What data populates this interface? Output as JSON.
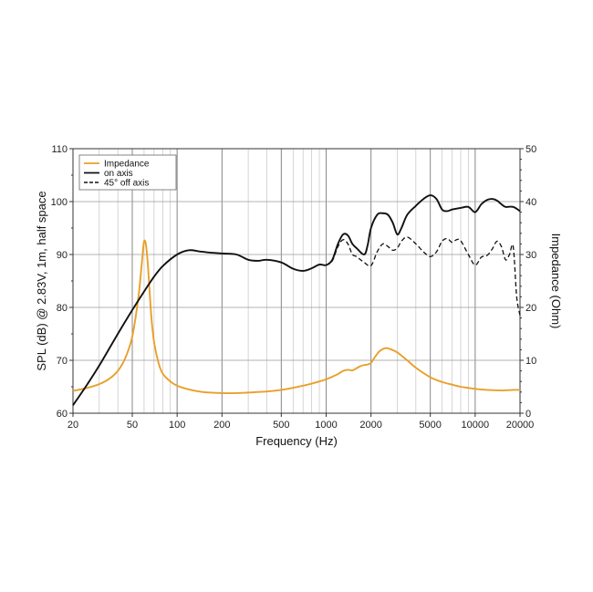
{
  "chart_data": {
    "type": "line",
    "xlabel": "Frequency (Hz)",
    "ylabel_left": "SPL (dB) @ 2.83V, 1m, half space",
    "ylabel_right": "Impedance (Ohm)",
    "x_scale": "log",
    "xlim": [
      20,
      20000
    ],
    "ylim_left": [
      60,
      110
    ],
    "ylim_right": [
      0,
      50
    ],
    "x_ticks": [
      20,
      50,
      100,
      200,
      500,
      1000,
      2000,
      5000,
      10000,
      20000
    ],
    "x_tick_labels": [
      "20",
      "50",
      "100",
      "200",
      "500",
      "1000",
      "2000",
      "5000",
      "10000",
      "20000"
    ],
    "y_ticks_left": [
      60,
      70,
      80,
      90,
      100,
      110
    ],
    "y_ticks_right": [
      0,
      10,
      20,
      30,
      40,
      50
    ],
    "grid": true,
    "legend_position": "top-left",
    "series": [
      {
        "name": "Impedance",
        "axis": "right",
        "color": "#E8A02A",
        "style": "solid",
        "x": [
          20,
          25,
          30,
          35,
          40,
          45,
          50,
          55,
          58,
          60,
          62,
          64,
          67,
          70,
          75,
          80,
          90,
          100,
          120,
          150,
          200,
          250,
          300,
          400,
          500,
          600,
          700,
          800,
          900,
          1000,
          1100,
          1200,
          1300,
          1400,
          1500,
          1600,
          1700,
          1800,
          1900,
          2000,
          2100,
          2200,
          2300,
          2500,
          2700,
          3000,
          3500,
          4000,
          5000,
          6000,
          7000,
          8000,
          10000,
          12000,
          15000,
          18000,
          20000
        ],
        "y": [
          4.2,
          4.8,
          5.5,
          6.5,
          8.0,
          10.5,
          14.5,
          22.0,
          28.5,
          32.5,
          31.5,
          27.0,
          18.5,
          13.5,
          9.5,
          7.5,
          6.0,
          5.2,
          4.5,
          4.0,
          3.8,
          3.8,
          3.9,
          4.1,
          4.4,
          4.8,
          5.2,
          5.6,
          6.0,
          6.4,
          6.9,
          7.4,
          8.0,
          8.2,
          8.1,
          8.5,
          8.9,
          9.1,
          9.2,
          9.5,
          10.4,
          11.2,
          11.8,
          12.3,
          12.1,
          11.5,
          10.0,
          8.6,
          6.8,
          5.9,
          5.4,
          5.0,
          4.6,
          4.4,
          4.3,
          4.4,
          4.4
        ]
      },
      {
        "name": "on axis",
        "axis": "left",
        "color": "#111111",
        "style": "solid",
        "x": [
          20,
          25,
          30,
          40,
          50,
          60,
          70,
          80,
          100,
          120,
          140,
          160,
          200,
          250,
          300,
          350,
          400,
          500,
          600,
          700,
          800,
          900,
          1000,
          1100,
          1200,
          1300,
          1400,
          1500,
          1600,
          1800,
          1900,
          2000,
          2200,
          2400,
          2600,
          2800,
          3000,
          3200,
          3500,
          4000,
          4500,
          5000,
          5500,
          6000,
          6500,
          7000,
          8000,
          9000,
          10000,
          11000,
          12000,
          13000,
          14000,
          15000,
          16000,
          18000,
          20000
        ],
        "y": [
          61.5,
          65.5,
          69.0,
          75.0,
          79.5,
          83.0,
          85.8,
          87.8,
          90.0,
          90.8,
          90.6,
          90.4,
          90.2,
          90.0,
          89.0,
          88.8,
          89.0,
          88.5,
          87.3,
          86.9,
          87.4,
          88.1,
          88.0,
          89.0,
          92.0,
          93.8,
          93.6,
          92.0,
          91.2,
          90.0,
          91.8,
          95.0,
          97.5,
          97.8,
          97.5,
          96.0,
          93.8,
          95.0,
          97.5,
          99.2,
          100.5,
          101.2,
          100.5,
          98.5,
          98.2,
          98.5,
          98.8,
          99.0,
          98.0,
          99.5,
          100.3,
          100.5,
          100.2,
          99.5,
          99.0,
          99.0,
          98.2
        ]
      },
      {
        "name": "45° off axis",
        "axis": "left",
        "color": "#111111",
        "style": "dashed",
        "x": [
          800,
          900,
          1000,
          1100,
          1200,
          1300,
          1400,
          1500,
          1600,
          1800,
          2000,
          2200,
          2400,
          2600,
          2800,
          3000,
          3200,
          3500,
          4000,
          4500,
          5000,
          5500,
          6000,
          6500,
          7000,
          7500,
          8000,
          9000,
          10000,
          11000,
          12000,
          13000,
          14000,
          15000,
          16000,
          17000,
          18000,
          19000,
          20000
        ],
        "y": [
          87.4,
          88.1,
          88.0,
          88.8,
          91.5,
          92.8,
          92.0,
          90.0,
          89.6,
          88.5,
          87.9,
          90.5,
          92.0,
          91.5,
          90.8,
          91.2,
          92.5,
          93.3,
          92.0,
          90.5,
          89.6,
          90.5,
          92.5,
          93.0,
          92.3,
          92.8,
          92.6,
          90.0,
          88.0,
          89.5,
          89.8,
          91.0,
          92.5,
          91.5,
          89.0,
          90.0,
          91.5,
          82.0,
          78.5
        ]
      }
    ]
  }
}
